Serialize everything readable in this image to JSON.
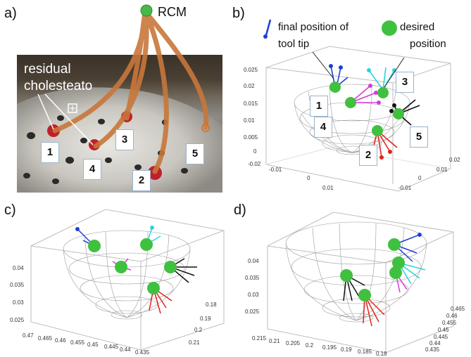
{
  "panels": {
    "a": "a)",
    "b": "b)",
    "c": "c)",
    "d": "d)"
  },
  "panel_a": {
    "rcm_label": "RCM",
    "residual_label_line1": "residual",
    "residual_label_line2": "cholesteato",
    "numbers": [
      "1",
      "4",
      "3",
      "2",
      "5"
    ]
  },
  "panel_b": {
    "legend_tool_tip_line1": "final position of",
    "legend_tool_tip_line2": "tool tip",
    "legend_desired_line1": "desired",
    "legend_desired_line2": "position",
    "numbers": [
      "1",
      "3",
      "4",
      "5",
      "2"
    ],
    "z_ticks": [
      "0.025",
      "0.02",
      "0.015",
      "0.01",
      "0.005",
      "0"
    ],
    "x_ticks": [
      "-0.02",
      "-0.01",
      "0",
      "0.01"
    ],
    "y_ticks": [
      "0.02",
      "0.01",
      "0",
      "-0.01"
    ]
  },
  "panel_c": {
    "z_ticks": [
      "0.04",
      "0.035",
      "0.03",
      "0.025"
    ],
    "x_ticks": [
      "0.47",
      "0.465",
      "0.46",
      "0.455",
      "0.45",
      "0.445",
      "0.44",
      "0.435"
    ],
    "y_ticks": [
      "0.18",
      "0.19",
      "0.2",
      "0.21"
    ]
  },
  "panel_d": {
    "z_ticks": [
      "0.04",
      "0.035",
      "0.03",
      "0.025"
    ],
    "x_ticks": [
      "0.215",
      "0.21",
      "0.205",
      "0.2",
      "0.195",
      "0.19",
      "0.185",
      "0.18"
    ],
    "y_ticks": [
      "0.465",
      "0.46",
      "0.455",
      "0.45",
      "0.445",
      "0.44",
      "0.435"
    ]
  },
  "colors": {
    "tube": "#c8773a",
    "desired": "#3fc13f",
    "blue": "#1f3ed6",
    "magenta": "#d53bd6",
    "cyan": "#2ad3e0",
    "black": "#111111",
    "red": "#e0231c",
    "marker_red": "#c0202a"
  }
}
